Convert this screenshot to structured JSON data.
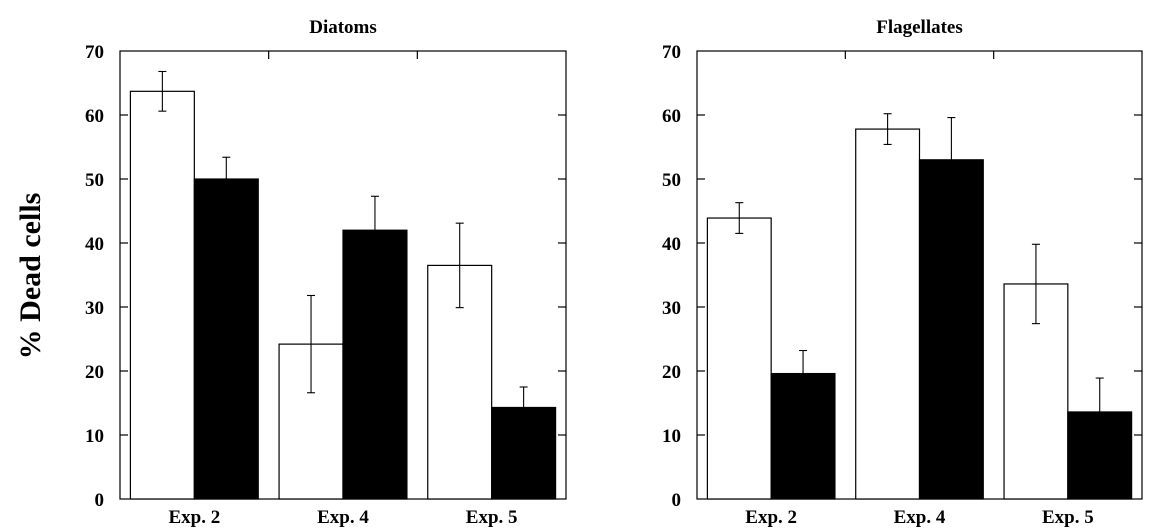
{
  "ylabel": "% Dead cells",
  "chart_data": [
    {
      "type": "bar",
      "title": "Diatoms",
      "categories": [
        "Exp. 2",
        "Exp. 4",
        "Exp. 5"
      ],
      "ylim": [
        0,
        70
      ],
      "yticks": [
        0,
        10,
        20,
        30,
        40,
        50,
        60,
        70
      ],
      "grid": false,
      "series": [
        {
          "values": [
            63.7,
            24.2,
            36.5
          ],
          "errors": [
            3.1,
            7.6,
            6.6
          ],
          "fill": "#ffffff"
        },
        {
          "values": [
            50.0,
            42.0,
            14.3
          ],
          "errors": [
            3.4,
            5.3,
            3.2
          ],
          "fill": "#000000"
        }
      ]
    },
    {
      "type": "bar",
      "title": "Flagellates",
      "categories": [
        "Exp. 2",
        "Exp. 4",
        "Exp. 5"
      ],
      "ylim": [
        0,
        70
      ],
      "yticks": [
        0,
        10,
        20,
        30,
        40,
        50,
        60,
        70
      ],
      "grid": false,
      "series": [
        {
          "values": [
            43.9,
            57.8,
            33.6
          ],
          "errors": [
            2.4,
            2.4,
            6.2
          ],
          "fill": "#ffffff"
        },
        {
          "values": [
            19.6,
            53.0,
            13.6
          ],
          "errors": [
            3.6,
            6.6,
            5.3
          ],
          "fill": "#000000"
        }
      ]
    }
  ]
}
